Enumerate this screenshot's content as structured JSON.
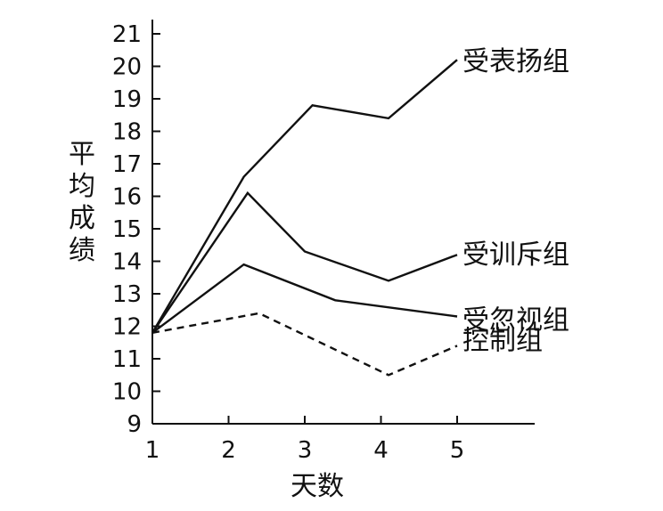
{
  "chart_data": {
    "type": "line",
    "xlabel": "天数",
    "ylabel": "平均成绩",
    "x_ticks": [
      1,
      2,
      3,
      4,
      5
    ],
    "y_ticks": [
      9,
      10,
      11,
      12,
      13,
      14,
      15,
      16,
      17,
      18,
      19,
      20,
      21
    ],
    "xlim": [
      1,
      6
    ],
    "ylim": [
      9,
      21.5
    ],
    "grid": false,
    "legend": "none (direct labels at line ends)",
    "colors": {
      "line": "#111111",
      "text": "#111111",
      "background": "#ffffff"
    },
    "series": [
      {
        "name": "受表扬组",
        "style": "solid",
        "points": [
          [
            1,
            11.8
          ],
          [
            2.2,
            16.6
          ],
          [
            3.1,
            18.8
          ],
          [
            4.1,
            18.4
          ],
          [
            5.0,
            20.2
          ]
        ]
      },
      {
        "name": "受训斥组",
        "style": "solid",
        "points": [
          [
            1,
            11.8
          ],
          [
            2.25,
            16.1
          ],
          [
            3.0,
            14.3
          ],
          [
            4.1,
            13.4
          ],
          [
            5.0,
            14.2
          ]
        ]
      },
      {
        "name": "受忽视组",
        "style": "solid",
        "points": [
          [
            1,
            11.8
          ],
          [
            2.2,
            13.9
          ],
          [
            3.4,
            12.8
          ],
          [
            5.0,
            12.3
          ]
        ]
      },
      {
        "name": "控制组",
        "style": "dashed",
        "points": [
          [
            1,
            11.8
          ],
          [
            2.4,
            12.4
          ],
          [
            4.1,
            10.5
          ],
          [
            5.0,
            11.4
          ]
        ]
      }
    ]
  }
}
